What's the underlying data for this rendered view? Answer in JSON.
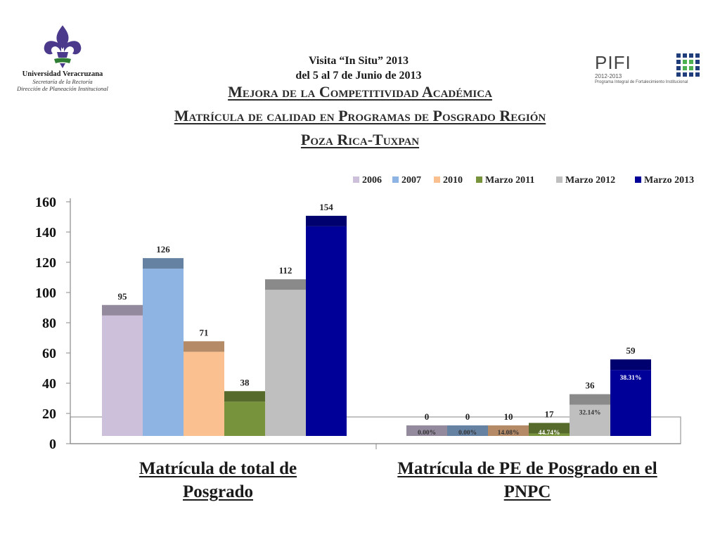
{
  "header": {
    "university": "Universidad Veracruzana",
    "sub1": "Secretaría de la Rectoría",
    "sub2": "Dirección de Planeación Institucional",
    "visit_line1": "Visita “In Situ”  2013",
    "visit_line2": "del 5 al 7 de Junio de 2013",
    "title1": "Mejora de la Competitividad Académica",
    "title2": "Matrícula de calidad en Programas de Posgrado Región",
    "title3": "Poza Rica-Tuxpan",
    "pifi_logo": "PIFI",
    "pifi_years": "2012-2013",
    "pifi_sub": "Programa Integral de Fortalecimiento Institucional"
  },
  "chart_data": {
    "type": "bar",
    "categories": [
      "Matrícula de total de Posgrado",
      "Matrícula de PE de Posgrado en el PNPC"
    ],
    "series": [
      {
        "name": "2006",
        "color": "#ccc0da",
        "values": [
          95,
          0
        ],
        "pct": [
          "",
          "0.00%"
        ]
      },
      {
        "name": "2007",
        "color": "#8db4e2",
        "values": [
          126,
          0
        ],
        "pct": [
          "",
          "0.00%"
        ]
      },
      {
        "name": "2010",
        "color": "#fac08f",
        "values": [
          71,
          10
        ],
        "pct": [
          "",
          "14.08%"
        ]
      },
      {
        "name": "Marzo 2011",
        "color": "#77933c",
        "values": [
          38,
          17
        ],
        "pct": [
          "",
          "44.74%"
        ]
      },
      {
        "name": "Marzo 2012",
        "color": "#bfbfbf",
        "values": [
          112,
          36
        ],
        "pct": [
          "",
          "32.14%"
        ]
      },
      {
        "name": "Marzo 2013",
        "color": "#000099",
        "values": [
          154,
          59
        ],
        "pct": [
          "",
          "38.31%"
        ]
      }
    ],
    "y_ticks": [
      "0",
      "20",
      "40",
      "60",
      "80",
      "100",
      "120",
      "140",
      "160"
    ],
    "ylim": [
      0,
      160
    ],
    "legend_position": "top-right",
    "grid": false,
    "xlabel": "",
    "ylabel": ""
  }
}
